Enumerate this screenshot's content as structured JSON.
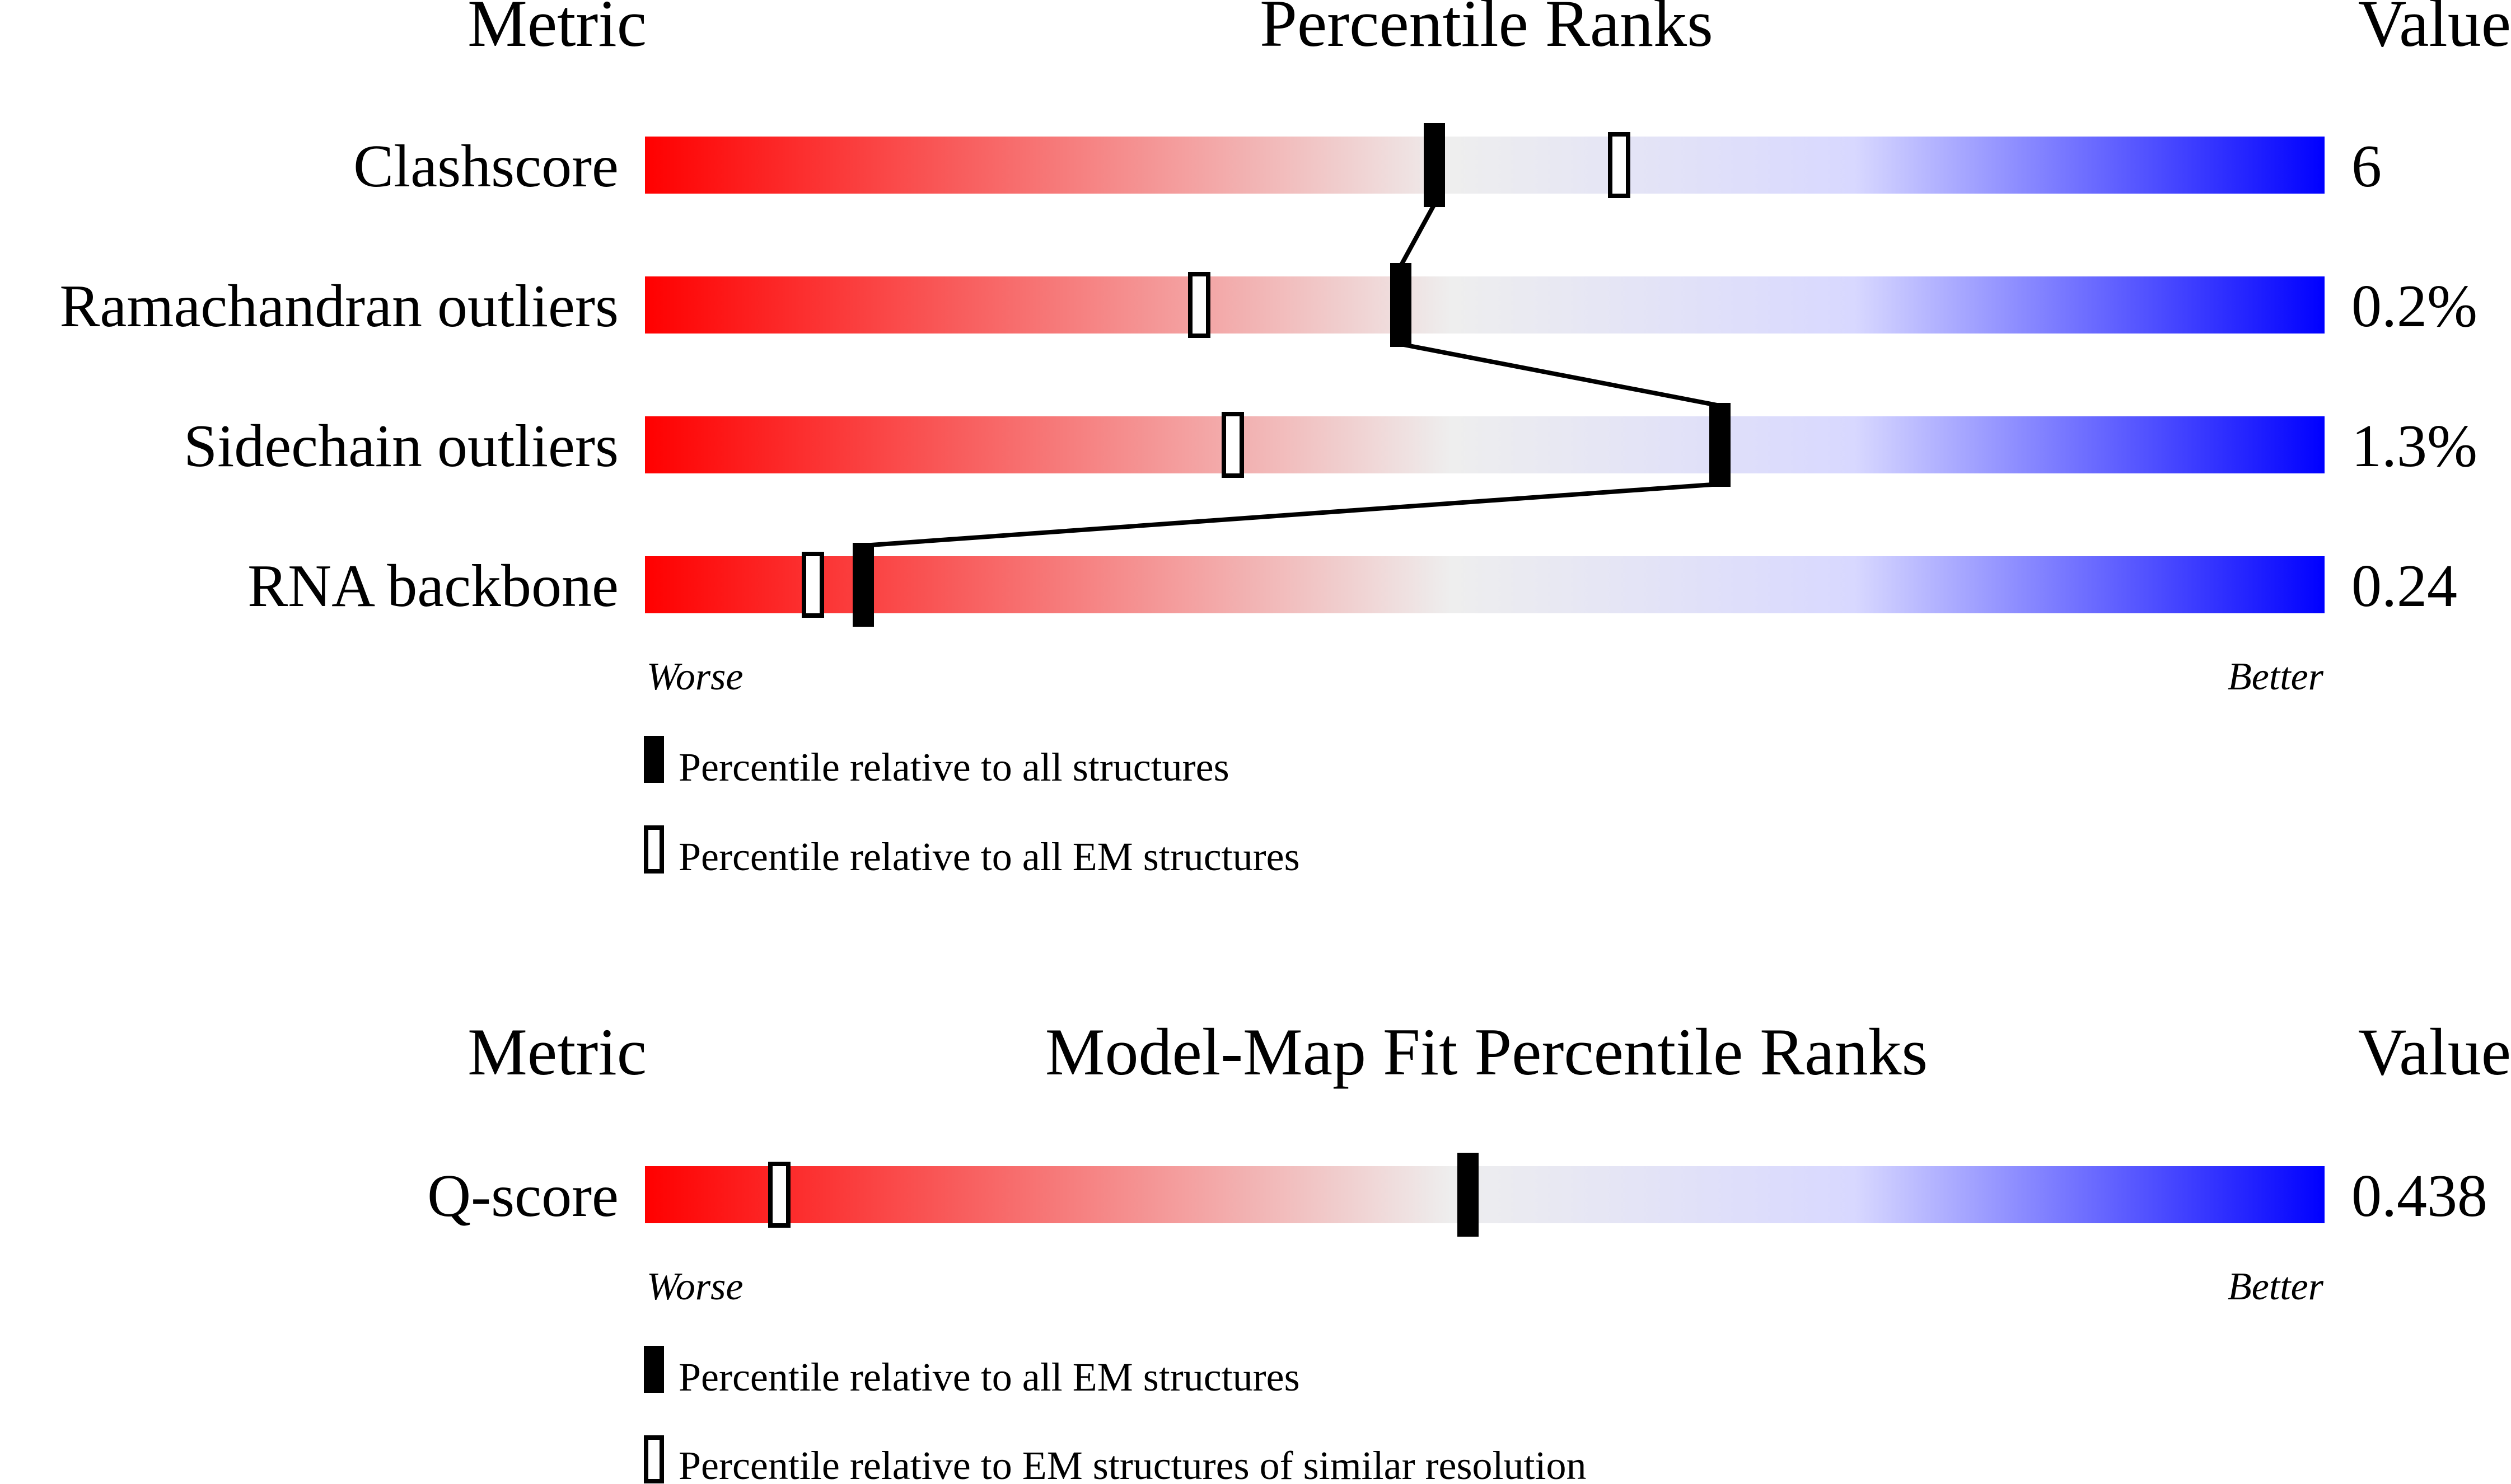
{
  "colors": {
    "worse": "#ff0000",
    "middle": "#eeeeee",
    "mid_blue": "#d8d8ff",
    "better": "#0000ff",
    "marker": "#000000"
  },
  "validation": {
    "header_metric": "Metric",
    "header_title": "Percentile Ranks",
    "header_value": "Value",
    "worse_label": "Worse",
    "better_label": "Better",
    "legend_filled": "Percentile relative to all structures",
    "legend_open": "Percentile relative to all EM structures"
  },
  "fit": {
    "header_metric": "Metric",
    "header_title": "Model-Map Fit Percentile Ranks",
    "header_value": "Value",
    "worse_label": "Worse",
    "better_label": "Better",
    "legend_filled": "Percentile relative to all EM structures",
    "legend_open": "Percentile relative to EM structures of similar resolution"
  },
  "chart_data": [
    {
      "type": "bar",
      "title": "Percentile Ranks",
      "xlim": [
        0,
        100
      ],
      "metrics": [
        {
          "name": "Clashscore",
          "value": "6",
          "filled_percentile": 47,
          "open_percentile": 58
        },
        {
          "name": "Ramachandran outliers",
          "value": "0.2%",
          "filled_percentile": 45,
          "open_percentile": 33
        },
        {
          "name": "Sidechain outliers",
          "value": "1.3%",
          "filled_percentile": 64,
          "open_percentile": 35
        },
        {
          "name": "RNA backbone",
          "value": "0.24",
          "filled_percentile": 13,
          "open_percentile": 10
        }
      ]
    },
    {
      "type": "bar",
      "title": "Model-Map Fit Percentile Ranks",
      "xlim": [
        0,
        100
      ],
      "metrics": [
        {
          "name": "Q-score",
          "value": "0.438",
          "filled_percentile": 49,
          "open_percentile": 8
        }
      ]
    }
  ]
}
